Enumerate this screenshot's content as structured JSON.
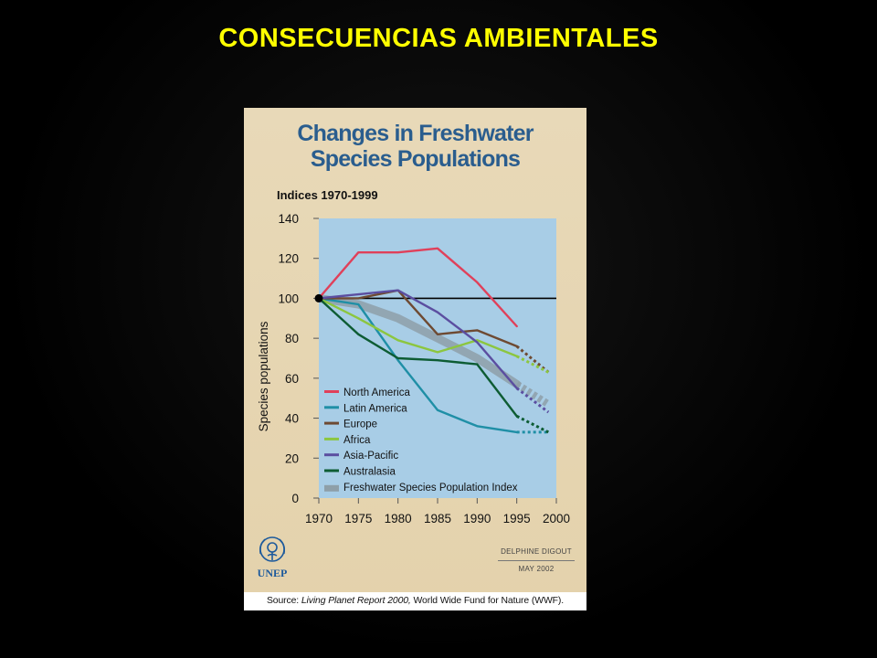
{
  "slide": {
    "title": "CONSECUENCIAS AMBIENTALES"
  },
  "colors": {
    "title": "#ffff00",
    "chart_title": "#2a5d8e",
    "plot_bg": "#a8cde6"
  },
  "chart_data": {
    "type": "line",
    "title_lines": [
      "Changes in Freshwater",
      "Species Populations"
    ],
    "subtitle": "Indices 1970-1999",
    "ylabel": "Species populations",
    "xlabel": "",
    "xlim": [
      1970,
      2000
    ],
    "ylim": [
      0,
      140
    ],
    "x_ticks": [
      1970,
      1975,
      1980,
      1985,
      1990,
      1995,
      2000
    ],
    "y_ticks": [
      0,
      20,
      40,
      60,
      80,
      100,
      120,
      140
    ],
    "reference_line": 100,
    "series": [
      {
        "name": "North America",
        "color": "#e0405a",
        "points": [
          [
            1970,
            100
          ],
          [
            1975,
            123
          ],
          [
            1980,
            123
          ],
          [
            1985,
            125
          ],
          [
            1990,
            108
          ],
          [
            1995,
            86
          ]
        ],
        "dotted": []
      },
      {
        "name": "Latin America",
        "color": "#1f8fa6",
        "points": [
          [
            1970,
            100
          ],
          [
            1975,
            97
          ],
          [
            1980,
            69
          ],
          [
            1985,
            44
          ],
          [
            1990,
            36
          ],
          [
            1995,
            33
          ]
        ],
        "dotted": [
          [
            1995,
            33
          ],
          [
            1999,
            33
          ]
        ]
      },
      {
        "name": "Europe",
        "color": "#6e4a32",
        "points": [
          [
            1970,
            100
          ],
          [
            1975,
            100
          ],
          [
            1980,
            104
          ],
          [
            1985,
            82
          ],
          [
            1990,
            84
          ],
          [
            1995,
            76
          ]
        ],
        "dotted": [
          [
            1995,
            76
          ],
          [
            1999,
            63
          ]
        ]
      },
      {
        "name": "Africa",
        "color": "#8cc63f",
        "points": [
          [
            1970,
            100
          ],
          [
            1975,
            90
          ],
          [
            1980,
            79
          ],
          [
            1985,
            73
          ],
          [
            1990,
            79
          ],
          [
            1995,
            71
          ]
        ],
        "dotted": [
          [
            1995,
            71
          ],
          [
            1999,
            63
          ]
        ]
      },
      {
        "name": "Asia-Pacific",
        "color": "#5b4ea0",
        "points": [
          [
            1970,
            100
          ],
          [
            1975,
            102
          ],
          [
            1980,
            104
          ],
          [
            1985,
            93
          ],
          [
            1990,
            78
          ],
          [
            1995,
            55
          ]
        ],
        "dotted": [
          [
            1995,
            55
          ],
          [
            1999,
            43
          ]
        ]
      },
      {
        "name": "Australasia",
        "color": "#0d5c33",
        "points": [
          [
            1970,
            100
          ],
          [
            1975,
            82
          ],
          [
            1980,
            70
          ],
          [
            1985,
            69
          ],
          [
            1990,
            67
          ],
          [
            1995,
            41
          ]
        ],
        "dotted": [
          [
            1995,
            41
          ],
          [
            1999,
            33
          ]
        ]
      },
      {
        "name": "Freshwater Species Population Index",
        "color": "#8e9fa8",
        "band": true,
        "points": [
          [
            1970,
            100
          ],
          [
            1975,
            97
          ],
          [
            1980,
            90
          ],
          [
            1985,
            80
          ],
          [
            1990,
            70
          ],
          [
            1995,
            57
          ]
        ],
        "dotted": [
          [
            1995,
            57
          ],
          [
            1999,
            47
          ]
        ]
      }
    ],
    "grid": false,
    "legend_position": "bottom-left"
  },
  "credit": {
    "author": "DELPHINE DIGOUT",
    "date": "MAY 2002"
  },
  "logo": {
    "text": "UNEP"
  },
  "source": {
    "prefix": "Source: ",
    "report": "Living Planet Report 2000,",
    "rest": " World Wide Fund for Nature (WWF)."
  }
}
